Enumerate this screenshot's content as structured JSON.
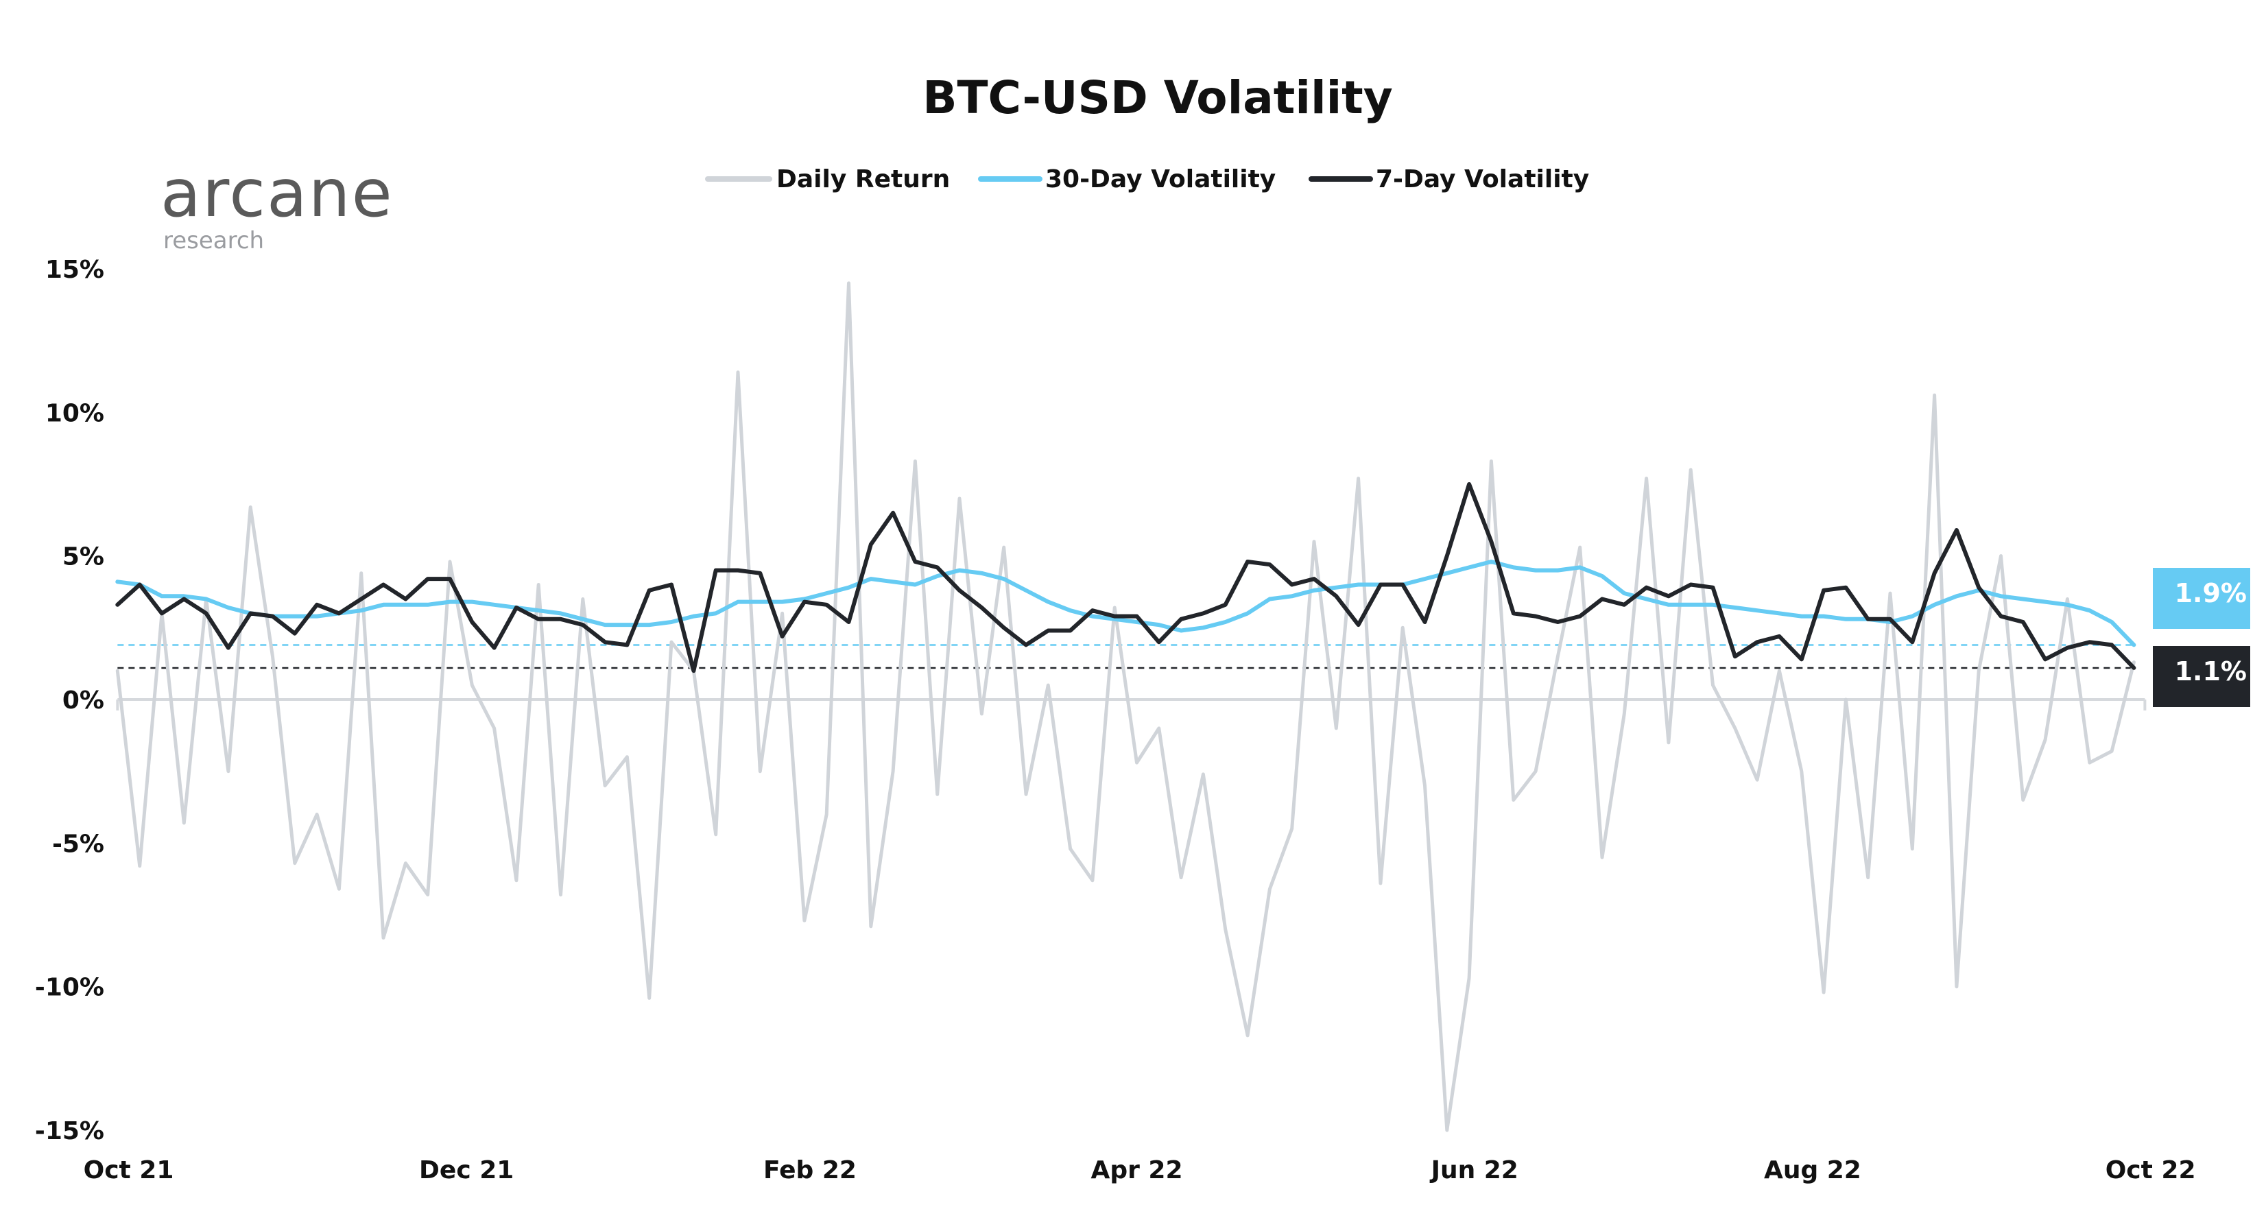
{
  "chart_data": {
    "type": "line",
    "title": "BTC-USD Volatility",
    "legend": {
      "placement": "top-center",
      "entries": [
        "Daily Return",
        "30-Day Volatility",
        "7-Day Volatility"
      ]
    },
    "xlabel": "",
    "ylabel": "",
    "ylim": [
      -15,
      15
    ],
    "yticks": [
      {
        "value": 15,
        "label": "15%"
      },
      {
        "value": 10,
        "label": "10%"
      },
      {
        "value": 5,
        "label": "5%"
      },
      {
        "value": 0,
        "label": "0%"
      },
      {
        "value": -5,
        "label": "-5%"
      },
      {
        "value": -10,
        "label": "-10%"
      },
      {
        "value": -15,
        "label": "-15%"
      }
    ],
    "xticks": [
      {
        "date": "2021-10-01",
        "label": "Oct 21"
      },
      {
        "date": "2021-12-01",
        "label": "Dec 21"
      },
      {
        "date": "2022-02-01",
        "label": "Feb 22"
      },
      {
        "date": "2022-04-01",
        "label": "Apr 22"
      },
      {
        "date": "2022-06-01",
        "label": "Jun 22"
      },
      {
        "date": "2022-08-01",
        "label": "Aug 22"
      },
      {
        "date": "2022-10-01",
        "label": "Oct 22"
      }
    ],
    "grid": false,
    "x": [
      "2021-09-29",
      "2021-10-03",
      "2021-10-07",
      "2021-10-11",
      "2021-10-15",
      "2021-10-19",
      "2021-10-23",
      "2021-10-27",
      "2021-10-31",
      "2021-11-04",
      "2021-11-08",
      "2021-11-12",
      "2021-11-16",
      "2021-11-20",
      "2021-11-24",
      "2021-11-28",
      "2021-12-02",
      "2021-12-06",
      "2021-12-10",
      "2021-12-14",
      "2021-12-18",
      "2021-12-22",
      "2021-12-26",
      "2021-12-30",
      "2022-01-03",
      "2022-01-07",
      "2022-01-11",
      "2022-01-15",
      "2022-01-19",
      "2022-01-23",
      "2022-01-27",
      "2022-01-31",
      "2022-02-04",
      "2022-02-08",
      "2022-02-12",
      "2022-02-16",
      "2022-02-20",
      "2022-02-24",
      "2022-02-28",
      "2022-03-04",
      "2022-03-08",
      "2022-03-12",
      "2022-03-16",
      "2022-03-20",
      "2022-03-24",
      "2022-03-28",
      "2022-04-01",
      "2022-04-05",
      "2022-04-09",
      "2022-04-13",
      "2022-04-17",
      "2022-04-21",
      "2022-04-25",
      "2022-04-29",
      "2022-05-03",
      "2022-05-07",
      "2022-05-11",
      "2022-05-15",
      "2022-05-19",
      "2022-05-23",
      "2022-05-27",
      "2022-05-31",
      "2022-06-04",
      "2022-06-08",
      "2022-06-12",
      "2022-06-16",
      "2022-06-20",
      "2022-06-24",
      "2022-06-28",
      "2022-07-02",
      "2022-07-06",
      "2022-07-10",
      "2022-07-14",
      "2022-07-18",
      "2022-07-22",
      "2022-07-26",
      "2022-07-30",
      "2022-08-03",
      "2022-08-07",
      "2022-08-11",
      "2022-08-15",
      "2022-08-19",
      "2022-08-23",
      "2022-08-27",
      "2022-08-31",
      "2022-09-04",
      "2022-09-08",
      "2022-09-12",
      "2022-09-16",
      "2022-09-20",
      "2022-09-24",
      "2022-09-28"
    ],
    "series": [
      {
        "name": "Daily Return",
        "color": "#d0d4d9",
        "values": [
          1,
          -5.8,
          3,
          -4.3,
          3.5,
          -2.5,
          6.7,
          1.5,
          -5.7,
          -4,
          -6.6,
          4.4,
          -8.3,
          -5.7,
          -6.8,
          4.8,
          0.5,
          -1,
          -6.3,
          4,
          -6.8,
          3.5,
          -3,
          -2,
          -10.4,
          2,
          1,
          -4.7,
          11.4,
          -2.5,
          3,
          -7.7,
          -4,
          14.5,
          -7.9,
          -2.5,
          8.3,
          -3.3,
          7,
          -0.5,
          5.3,
          -3.3,
          0.5,
          -5.2,
          -6.3,
          3.2,
          -2.2,
          -1,
          -6.2,
          -2.6,
          -8,
          -11.7,
          -6.6,
          -4.5,
          5.5,
          -1,
          7.7,
          -6.4,
          2.5,
          -3,
          -15,
          -9.7,
          8.3,
          -3.5,
          -2.5,
          1.5,
          5.3,
          -5.5,
          -0.5,
          7.7,
          -1.5,
          8,
          0.5,
          -1,
          -2.8,
          1,
          -2.5,
          -10.2,
          0,
          -6.2,
          3.7,
          -5.2,
          10.6,
          -10,
          1,
          5,
          -3.5,
          -1.4,
          3.5,
          -2.2,
          -1.8,
          1.3
        ]
      },
      {
        "name": "30-Day Volatility",
        "color": "#66cbf3",
        "values": [
          4.1,
          4.0,
          3.6,
          3.6,
          3.5,
          3.2,
          3.0,
          2.9,
          2.9,
          2.9,
          3.0,
          3.1,
          3.3,
          3.3,
          3.3,
          3.4,
          3.4,
          3.3,
          3.2,
          3.1,
          3.0,
          2.8,
          2.6,
          2.6,
          2.6,
          2.7,
          2.9,
          3.0,
          3.4,
          3.4,
          3.4,
          3.5,
          3.7,
          3.9,
          4.2,
          4.1,
          4.0,
          4.3,
          4.5,
          4.4,
          4.2,
          3.8,
          3.4,
          3.1,
          2.9,
          2.8,
          2.7,
          2.6,
          2.4,
          2.5,
          2.7,
          3.0,
          3.5,
          3.6,
          3.8,
          3.9,
          4.0,
          4.0,
          4.0,
          4.2,
          4.4,
          4.6,
          4.8,
          4.6,
          4.5,
          4.5,
          4.6,
          4.3,
          3.7,
          3.5,
          3.3,
          3.3,
          3.3,
          3.2,
          3.1,
          3.0,
          2.9,
          2.9,
          2.8,
          2.8,
          2.7,
          2.9,
          3.3,
          3.6,
          3.8,
          3.6,
          3.5,
          3.4,
          3.3,
          3.1,
          2.7,
          1.9
        ]
      },
      {
        "name": "7-Day Volatility",
        "color": "#22252a",
        "values": [
          3.3,
          4.0,
          3.0,
          3.5,
          3.0,
          1.8,
          3.0,
          2.9,
          2.3,
          3.3,
          3.0,
          3.5,
          4.0,
          3.5,
          4.2,
          4.2,
          2.7,
          1.8,
          3.2,
          2.8,
          2.8,
          2.6,
          2.0,
          1.9,
          3.8,
          4.0,
          1.0,
          4.5,
          4.5,
          4.4,
          2.2,
          3.4,
          3.3,
          2.7,
          5.4,
          6.5,
          4.8,
          4.6,
          3.8,
          3.2,
          2.5,
          1.9,
          2.4,
          2.4,
          3.1,
          2.9,
          2.9,
          2.0,
          2.8,
          3.0,
          3.3,
          4.8,
          4.7,
          4.0,
          4.2,
          3.6,
          2.6,
          4.0,
          4.0,
          2.7,
          5.0,
          7.5,
          5.5,
          3.0,
          2.9,
          2.7,
          2.9,
          3.5,
          3.3,
          3.9,
          3.6,
          4.0,
          3.9,
          1.5,
          2.0,
          2.2,
          1.4,
          3.8,
          3.9,
          2.8,
          2.8,
          2.0,
          4.4,
          5.9,
          3.9,
          2.9,
          2.7,
          1.4,
          1.8,
          2.0,
          1.9,
          1.1
        ]
      }
    ],
    "reference_lines": [
      {
        "series": "30-Day Volatility",
        "value": 1.9,
        "label": "1.9%",
        "color": "#66cbf3"
      },
      {
        "series": "7-Day Volatility",
        "value": 1.1,
        "label": "1.1%",
        "color": "#22252a"
      }
    ]
  },
  "branding": {
    "logo_main": "arcane",
    "logo_sub": "research"
  }
}
